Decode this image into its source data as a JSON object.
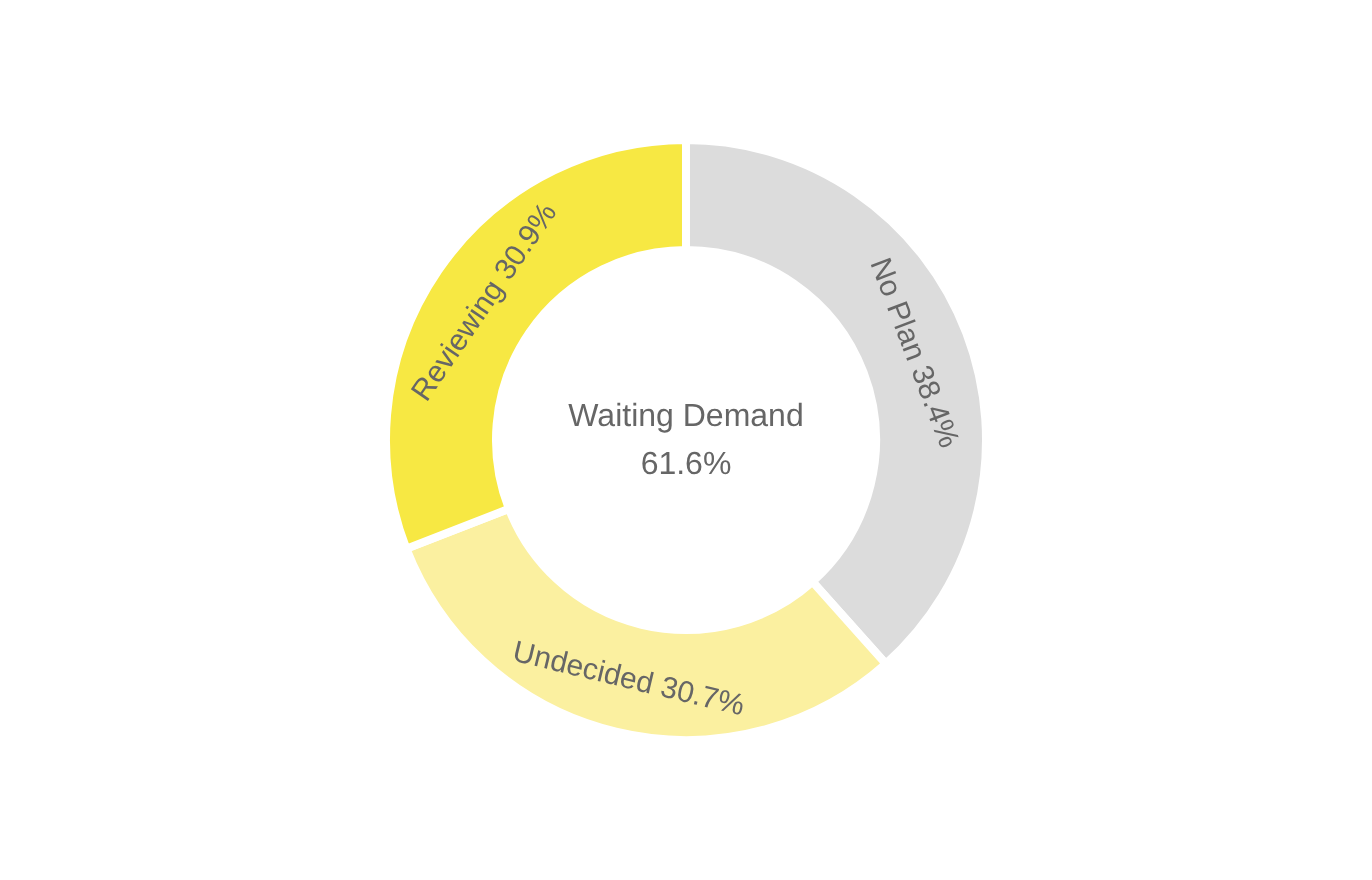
{
  "chart_data": {
    "type": "donut",
    "categories": [
      "No Plan",
      "Undecided",
      "Reviewing"
    ],
    "values": [
      38.4,
      30.7,
      30.9
    ],
    "colors": [
      "#dcdcdc",
      "#fbf0a0",
      "#f7e843"
    ],
    "value_labels": [
      "38.4%",
      "30.7%",
      "30.9%"
    ],
    "annotations": [
      "Waiting Demand",
      "61.6%"
    ]
  }
}
